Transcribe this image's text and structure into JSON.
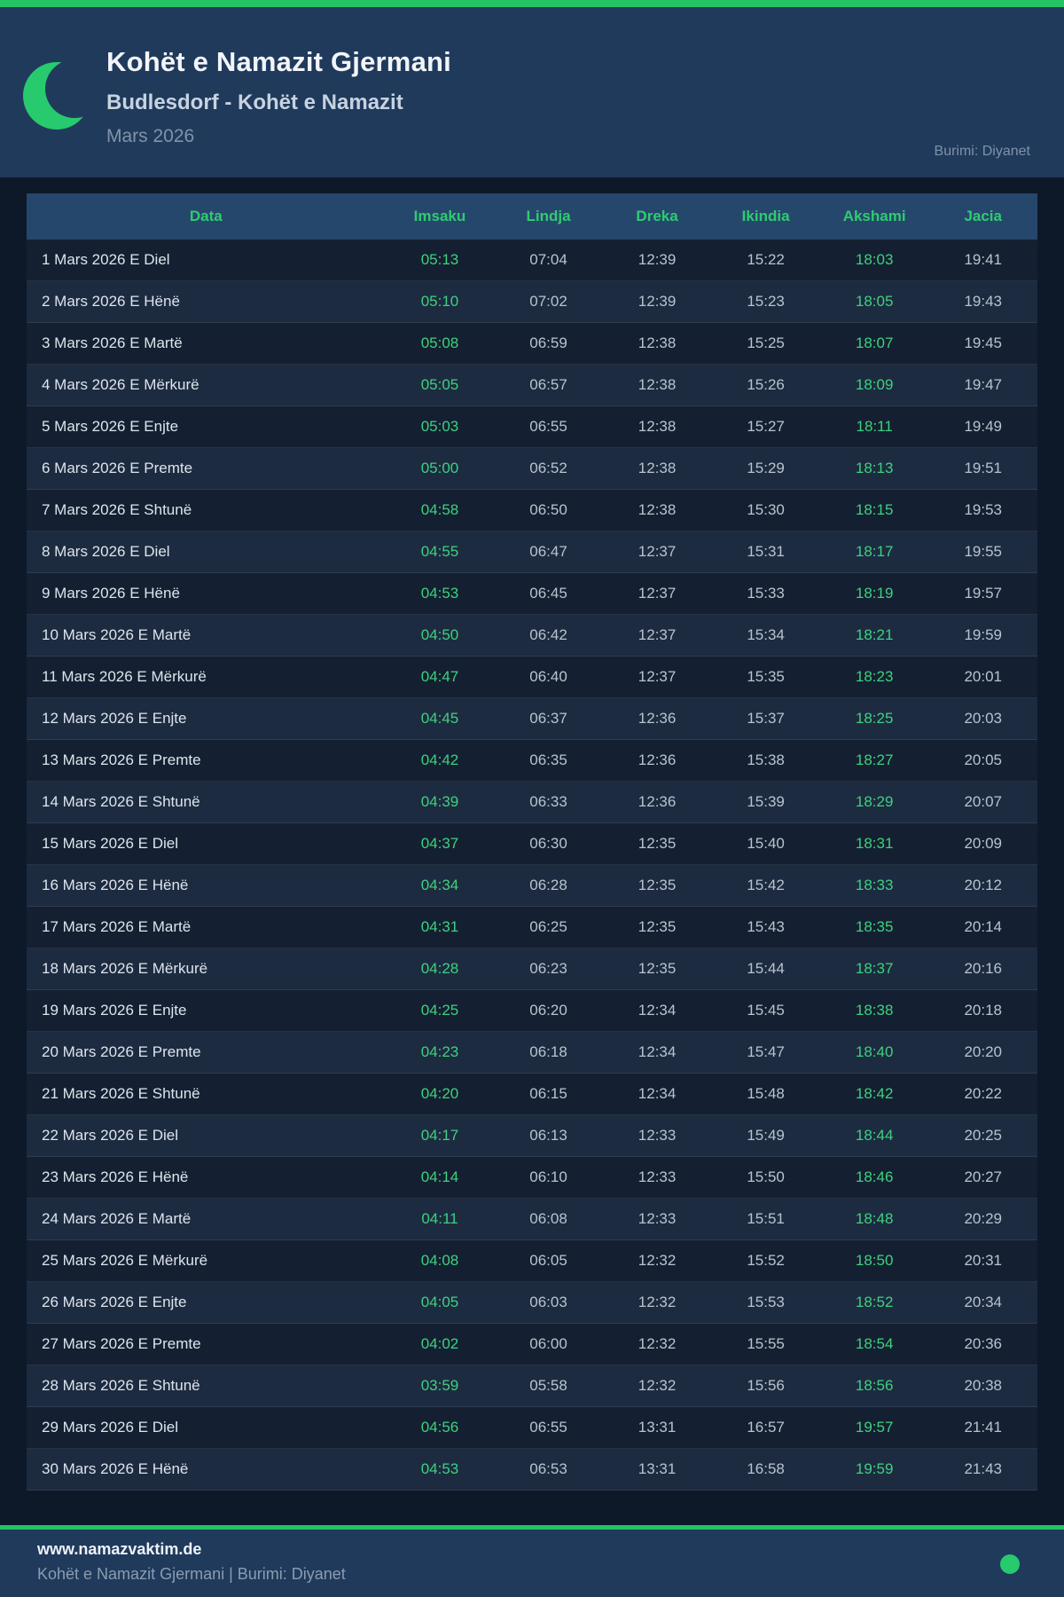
{
  "header": {
    "title": "Kohët e Namazit Gjermani",
    "subtitle": "Budlesdorf - Kohët e Namazit",
    "month": "Mars 2026",
    "source": "Burimi: Diyanet"
  },
  "table": {
    "columns": [
      "Data",
      "Imsaku",
      "Lindja",
      "Dreka",
      "Ikindia",
      "Akshami",
      "Jacia"
    ],
    "rows": [
      [
        "1 Mars 2026 E Diel",
        "05:13",
        "07:04",
        "12:39",
        "15:22",
        "18:03",
        "19:41"
      ],
      [
        "2 Mars 2026 E Hënë",
        "05:10",
        "07:02",
        "12:39",
        "15:23",
        "18:05",
        "19:43"
      ],
      [
        "3 Mars 2026 E Martë",
        "05:08",
        "06:59",
        "12:38",
        "15:25",
        "18:07",
        "19:45"
      ],
      [
        "4 Mars 2026 E Mërkurë",
        "05:05",
        "06:57",
        "12:38",
        "15:26",
        "18:09",
        "19:47"
      ],
      [
        "5 Mars 2026 E Enjte",
        "05:03",
        "06:55",
        "12:38",
        "15:27",
        "18:11",
        "19:49"
      ],
      [
        "6 Mars 2026 E Premte",
        "05:00",
        "06:52",
        "12:38",
        "15:29",
        "18:13",
        "19:51"
      ],
      [
        "7 Mars 2026 E Shtunë",
        "04:58",
        "06:50",
        "12:38",
        "15:30",
        "18:15",
        "19:53"
      ],
      [
        "8 Mars 2026 E Diel",
        "04:55",
        "06:47",
        "12:37",
        "15:31",
        "18:17",
        "19:55"
      ],
      [
        "9 Mars 2026 E Hënë",
        "04:53",
        "06:45",
        "12:37",
        "15:33",
        "18:19",
        "19:57"
      ],
      [
        "10 Mars 2026 E Martë",
        "04:50",
        "06:42",
        "12:37",
        "15:34",
        "18:21",
        "19:59"
      ],
      [
        "11 Mars 2026 E Mërkurë",
        "04:47",
        "06:40",
        "12:37",
        "15:35",
        "18:23",
        "20:01"
      ],
      [
        "12 Mars 2026 E Enjte",
        "04:45",
        "06:37",
        "12:36",
        "15:37",
        "18:25",
        "20:03"
      ],
      [
        "13 Mars 2026 E Premte",
        "04:42",
        "06:35",
        "12:36",
        "15:38",
        "18:27",
        "20:05"
      ],
      [
        "14 Mars 2026 E Shtunë",
        "04:39",
        "06:33",
        "12:36",
        "15:39",
        "18:29",
        "20:07"
      ],
      [
        "15 Mars 2026 E Diel",
        "04:37",
        "06:30",
        "12:35",
        "15:40",
        "18:31",
        "20:09"
      ],
      [
        "16 Mars 2026 E Hënë",
        "04:34",
        "06:28",
        "12:35",
        "15:42",
        "18:33",
        "20:12"
      ],
      [
        "17 Mars 2026 E Martë",
        "04:31",
        "06:25",
        "12:35",
        "15:43",
        "18:35",
        "20:14"
      ],
      [
        "18 Mars 2026 E Mërkurë",
        "04:28",
        "06:23",
        "12:35",
        "15:44",
        "18:37",
        "20:16"
      ],
      [
        "19 Mars 2026 E Enjte",
        "04:25",
        "06:20",
        "12:34",
        "15:45",
        "18:38",
        "20:18"
      ],
      [
        "20 Mars 2026 E Premte",
        "04:23",
        "06:18",
        "12:34",
        "15:47",
        "18:40",
        "20:20"
      ],
      [
        "21 Mars 2026 E Shtunë",
        "04:20",
        "06:15",
        "12:34",
        "15:48",
        "18:42",
        "20:22"
      ],
      [
        "22 Mars 2026 E Diel",
        "04:17",
        "06:13",
        "12:33",
        "15:49",
        "18:44",
        "20:25"
      ],
      [
        "23 Mars 2026 E Hënë",
        "04:14",
        "06:10",
        "12:33",
        "15:50",
        "18:46",
        "20:27"
      ],
      [
        "24 Mars 2026 E Martë",
        "04:11",
        "06:08",
        "12:33",
        "15:51",
        "18:48",
        "20:29"
      ],
      [
        "25 Mars 2026 E Mërkurë",
        "04:08",
        "06:05",
        "12:32",
        "15:52",
        "18:50",
        "20:31"
      ],
      [
        "26 Mars 2026 E Enjte",
        "04:05",
        "06:03",
        "12:32",
        "15:53",
        "18:52",
        "20:34"
      ],
      [
        "27 Mars 2026 E Premte",
        "04:02",
        "06:00",
        "12:32",
        "15:55",
        "18:54",
        "20:36"
      ],
      [
        "28 Mars 2026 E Shtunë",
        "03:59",
        "05:58",
        "12:32",
        "15:56",
        "18:56",
        "20:38"
      ],
      [
        "29 Mars 2026 E Diel",
        "04:56",
        "06:55",
        "13:31",
        "16:57",
        "19:57",
        "21:41"
      ],
      [
        "30 Mars 2026 E Hënë",
        "04:53",
        "06:53",
        "13:31",
        "16:58",
        "19:59",
        "21:43"
      ]
    ],
    "green_columns": [
      1,
      5
    ]
  },
  "footer": {
    "site": "www.namazvaktim.de",
    "tagline": "Kohët e Namazit Gjermani | Burimi: Diyanet"
  },
  "colors": {
    "accent_green": "#24c363",
    "moon_green": "#27ca6d",
    "header_label_green": "#2ecc71",
    "time_green": "#3ed17d",
    "header_bg": "#203a5c",
    "page_bg": "#0d1929",
    "row_odd": "#142031",
    "row_even": "#1d2b41",
    "table_header_bg": "#26476c"
  }
}
